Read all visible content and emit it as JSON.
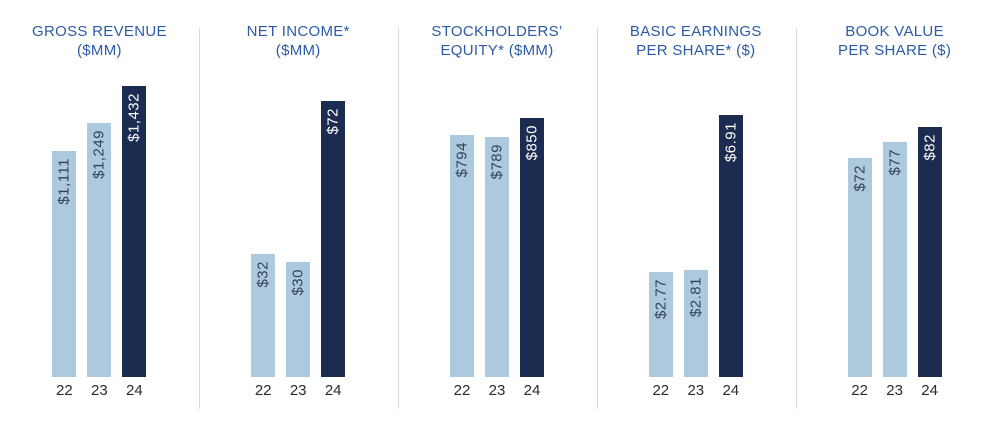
{
  "colors": {
    "background": "#ffffff",
    "bar_light": "#adc9de",
    "bar_dark": "#1c2b50",
    "title_text": "#2b5ba6",
    "value_label_on_light": "#33425a",
    "value_label_on_dark": "#ffffff",
    "axis_label": "#2b2b2b",
    "divider": "#d9d9d9"
  },
  "chart_data": [
    {
      "type": "bar",
      "title": "GROSS REVENUE ($MM)",
      "title_lines": [
        "GROSS REVENUE",
        "($MM)"
      ],
      "categories": [
        "22",
        "23",
        "24"
      ],
      "values": [
        1111,
        1249,
        1432
      ],
      "value_labels": [
        "$1,111",
        "$1,249",
        "$1,432"
      ],
      "bar_styles": [
        "light",
        "light",
        "dark"
      ],
      "ylim": [
        0,
        1432
      ],
      "legend": "none",
      "grid": "off"
    },
    {
      "type": "bar",
      "title": "NET INCOME* ($MM)",
      "title_lines": [
        "NET INCOME*",
        "($MM)"
      ],
      "categories": [
        "22",
        "23",
        "24"
      ],
      "values": [
        32,
        30,
        72
      ],
      "value_labels": [
        "$32",
        "$30",
        "$72"
      ],
      "bar_styles": [
        "light",
        "light",
        "dark"
      ],
      "ylim": [
        0,
        76
      ],
      "legend": "none",
      "grid": "off"
    },
    {
      "type": "bar",
      "title": "STOCKHOLDERS’ EQUITY* ($MM)",
      "title_lines": [
        "STOCKHOLDERS’",
        "EQUITY* ($MM)"
      ],
      "categories": [
        "22",
        "23",
        "24"
      ],
      "values": [
        794,
        789,
        850
      ],
      "value_labels": [
        "$794",
        "$789",
        "$850"
      ],
      "bar_styles": [
        "light",
        "light",
        "dark"
      ],
      "ylim": [
        0,
        955
      ],
      "legend": "none",
      "grid": "off"
    },
    {
      "type": "bar",
      "title": "BASIC EARNINGS PER SHARE* ($)",
      "title_lines": [
        "BASIC EARNINGS",
        "PER SHARE* ($)"
      ],
      "categories": [
        "22",
        "23",
        "24"
      ],
      "values": [
        2.77,
        2.81,
        6.91
      ],
      "value_labels": [
        "$2.77",
        "$2.81",
        "$6.91"
      ],
      "bar_styles": [
        "light",
        "light",
        "dark"
      ],
      "ylim": [
        0,
        7.67
      ],
      "legend": "none",
      "grid": "off"
    },
    {
      "type": "bar",
      "title": "BOOK VALUE PER SHARE ($)",
      "title_lines": [
        "BOOK VALUE",
        "PER SHARE ($)"
      ],
      "categories": [
        "22",
        "23",
        "24"
      ],
      "values": [
        72,
        77,
        82
      ],
      "value_labels": [
        "$72",
        "$77",
        "$82"
      ],
      "bar_styles": [
        "light",
        "light",
        "dark"
      ],
      "ylim": [
        0,
        95.5
      ],
      "legend": "none",
      "grid": "off"
    }
  ]
}
